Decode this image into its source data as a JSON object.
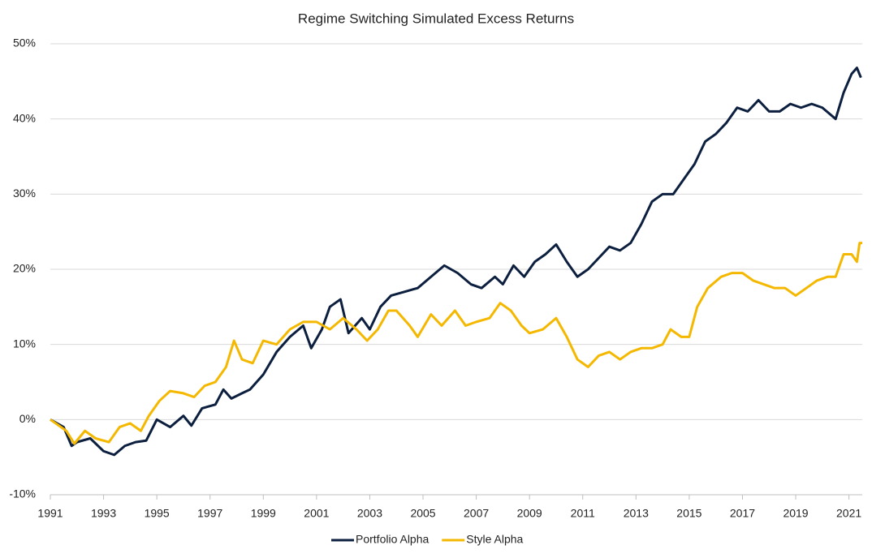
{
  "chart_data": {
    "type": "line",
    "title": "Regime Switching Simulated Excess Returns",
    "xlim": [
      1991,
      2021.5
    ],
    "xticks": [
      1991,
      1993,
      1995,
      1997,
      1999,
      2001,
      2003,
      2005,
      2007,
      2009,
      2011,
      2013,
      2015,
      2017,
      2019,
      2021
    ],
    "ylim": [
      -10,
      50
    ],
    "yticks": [
      {
        "value": -10,
        "label": "-10%"
      },
      {
        "value": 0,
        "label": "0%"
      },
      {
        "value": 10,
        "label": "10%"
      },
      {
        "value": 20,
        "label": "20%"
      },
      {
        "value": 30,
        "label": "30%"
      },
      {
        "value": 40,
        "label": "40%"
      },
      {
        "value": 50,
        "label": "50%"
      }
    ],
    "grid": true,
    "legend": "bottom",
    "series": [
      {
        "name": "Portfolio Alpha",
        "color": "#0c1f3f",
        "x": [
          1991,
          1991.5,
          1991.8,
          1992,
          1992.5,
          1993,
          1993.4,
          1993.8,
          1994.2,
          1994.6,
          1995,
          1995.5,
          1996,
          1996.3,
          1996.7,
          1997.2,
          1997.5,
          1997.8,
          1998.2,
          1998.5,
          1999,
          1999.5,
          2000,
          2000.5,
          2000.8,
          2001.2,
          2001.5,
          2001.9,
          2002.2,
          2002.7,
          2003,
          2003.4,
          2003.8,
          2004.3,
          2004.8,
          2005.3,
          2005.8,
          2006.3,
          2006.8,
          2007.2,
          2007.7,
          2008,
          2008.4,
          2008.8,
          2009.2,
          2009.6,
          2010,
          2010.4,
          2010.8,
          2011.2,
          2011.6,
          2012,
          2012.4,
          2012.8,
          2013.2,
          2013.6,
          2014,
          2014.4,
          2014.8,
          2015.2,
          2015.6,
          2016,
          2016.4,
          2016.8,
          2017.2,
          2017.6,
          2018,
          2018.4,
          2018.8,
          2019.2,
          2019.6,
          2020,
          2020.5,
          2020.8,
          2021.1,
          2021.3,
          2021.45
        ],
        "values": [
          0,
          -1,
          -3.5,
          -3,
          -2.5,
          -4.2,
          -4.7,
          -3.5,
          -3,
          -2.8,
          0,
          -1,
          0.5,
          -0.8,
          1.5,
          2,
          4,
          2.8,
          3.5,
          4,
          6,
          9,
          11,
          12.5,
          9.5,
          12,
          15,
          16,
          11.5,
          13.5,
          12,
          15,
          16.5,
          17,
          17.5,
          19,
          20.5,
          19.5,
          18,
          17.5,
          19,
          18,
          20.5,
          19,
          21,
          22,
          23.3,
          21,
          19,
          20,
          21.5,
          23,
          22.5,
          23.5,
          26,
          29,
          30,
          30,
          32,
          34,
          37,
          38,
          39.5,
          41.5,
          41,
          42.5,
          41,
          41,
          42,
          41.5,
          42,
          41.5,
          40,
          43.5,
          46,
          46.8,
          45.5
        ]
      },
      {
        "name": "Style Alpha",
        "color": "#f5b800",
        "x": [
          1991,
          1991.6,
          1991.9,
          1992.3,
          1992.7,
          1993.2,
          1993.6,
          1994,
          1994.4,
          1994.7,
          1995.1,
          1995.5,
          1996,
          1996.4,
          1996.8,
          1997.2,
          1997.6,
          1997.9,
          1998.2,
          1998.6,
          1999,
          1999.5,
          2000,
          2000.5,
          2001,
          2001.5,
          2002,
          2002.5,
          2002.9,
          2003.3,
          2003.7,
          2004,
          2004.5,
          2004.8,
          2005.3,
          2005.7,
          2006.2,
          2006.6,
          2007,
          2007.5,
          2007.9,
          2008.3,
          2008.7,
          2009,
          2009.5,
          2010,
          2010.4,
          2010.8,
          2011.2,
          2011.6,
          2012,
          2012.4,
          2012.8,
          2013.2,
          2013.6,
          2014,
          2014.3,
          2014.7,
          2015,
          2015.3,
          2015.7,
          2016.2,
          2016.6,
          2017,
          2017.4,
          2017.8,
          2018.2,
          2018.6,
          2019,
          2019.4,
          2019.8,
          2020.2,
          2020.5,
          2020.8,
          2021.1,
          2021.3,
          2021.4,
          2021.5
        ],
        "values": [
          0,
          -1.5,
          -3.2,
          -1.5,
          -2.5,
          -3,
          -1,
          -0.5,
          -1.5,
          0.5,
          2.5,
          3.8,
          3.5,
          3,
          4.5,
          5,
          7,
          10.5,
          8,
          7.5,
          10.5,
          10,
          12,
          13,
          13,
          12,
          13.5,
          12,
          10.5,
          12,
          14.5,
          14.5,
          12.5,
          11,
          14,
          12.5,
          14.5,
          12.5,
          13,
          13.5,
          15.5,
          14.5,
          12.5,
          11.5,
          12,
          13.5,
          11,
          8,
          7,
          8.5,
          9,
          8,
          9,
          9.5,
          9.5,
          10,
          12,
          11,
          11,
          15,
          17.5,
          19,
          19.5,
          19.5,
          18.5,
          18,
          17.5,
          17.5,
          16.5,
          17.5,
          18.5,
          19,
          19,
          22,
          22,
          21,
          23.5,
          23.5
        ]
      }
    ]
  }
}
